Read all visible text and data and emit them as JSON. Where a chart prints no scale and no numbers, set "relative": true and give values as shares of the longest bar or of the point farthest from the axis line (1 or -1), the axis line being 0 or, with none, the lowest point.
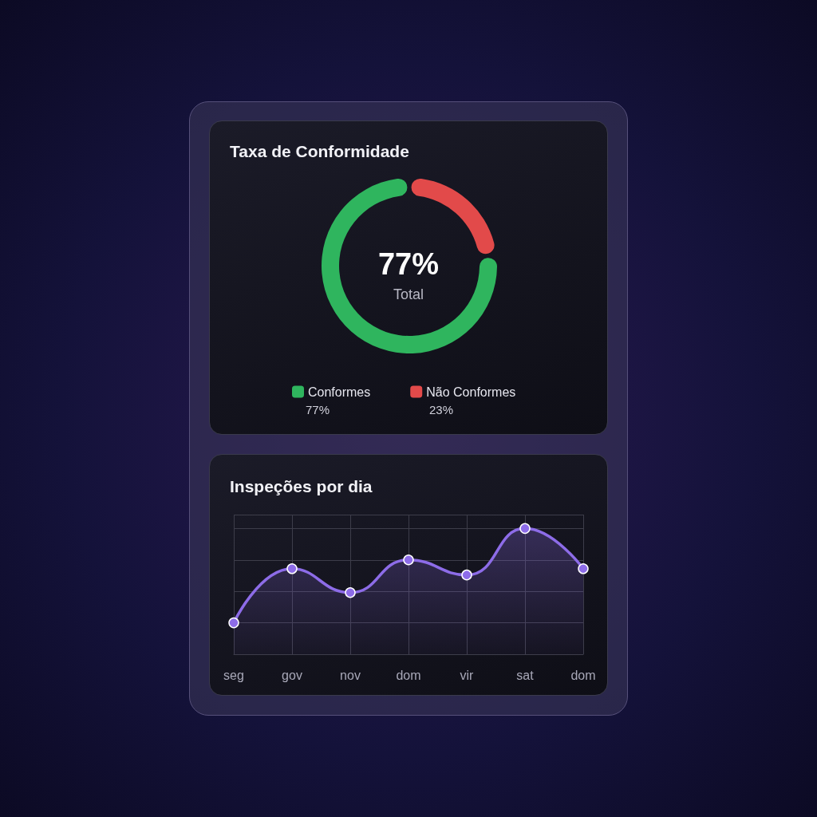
{
  "chart_data": [
    {
      "type": "donut",
      "title": "Taxa de Conformidade",
      "categories": [
        "Conformes",
        "Não Conformes"
      ],
      "values": [
        77,
        23
      ],
      "colors": [
        "#2fb55e",
        "#e24a4a"
      ],
      "value_labels": [
        "77%",
        "23%"
      ],
      "annotations": [
        "77%",
        "Total"
      ],
      "legend": "bottom"
    },
    {
      "type": "area",
      "title": "Inspeções por dia",
      "categories": [
        "seg",
        "gov",
        "nov",
        "dom",
        "vir",
        "sat",
        "dom"
      ],
      "relative": true,
      "series": [
        {
          "color": "#8d6ce8",
          "values": [
            0.25,
            0.68,
            0.49,
            0.75,
            0.63,
            1,
            0.68
          ]
        }
      ],
      "marker": "circle",
      "grid": true,
      "legend": false
    }
  ]
}
